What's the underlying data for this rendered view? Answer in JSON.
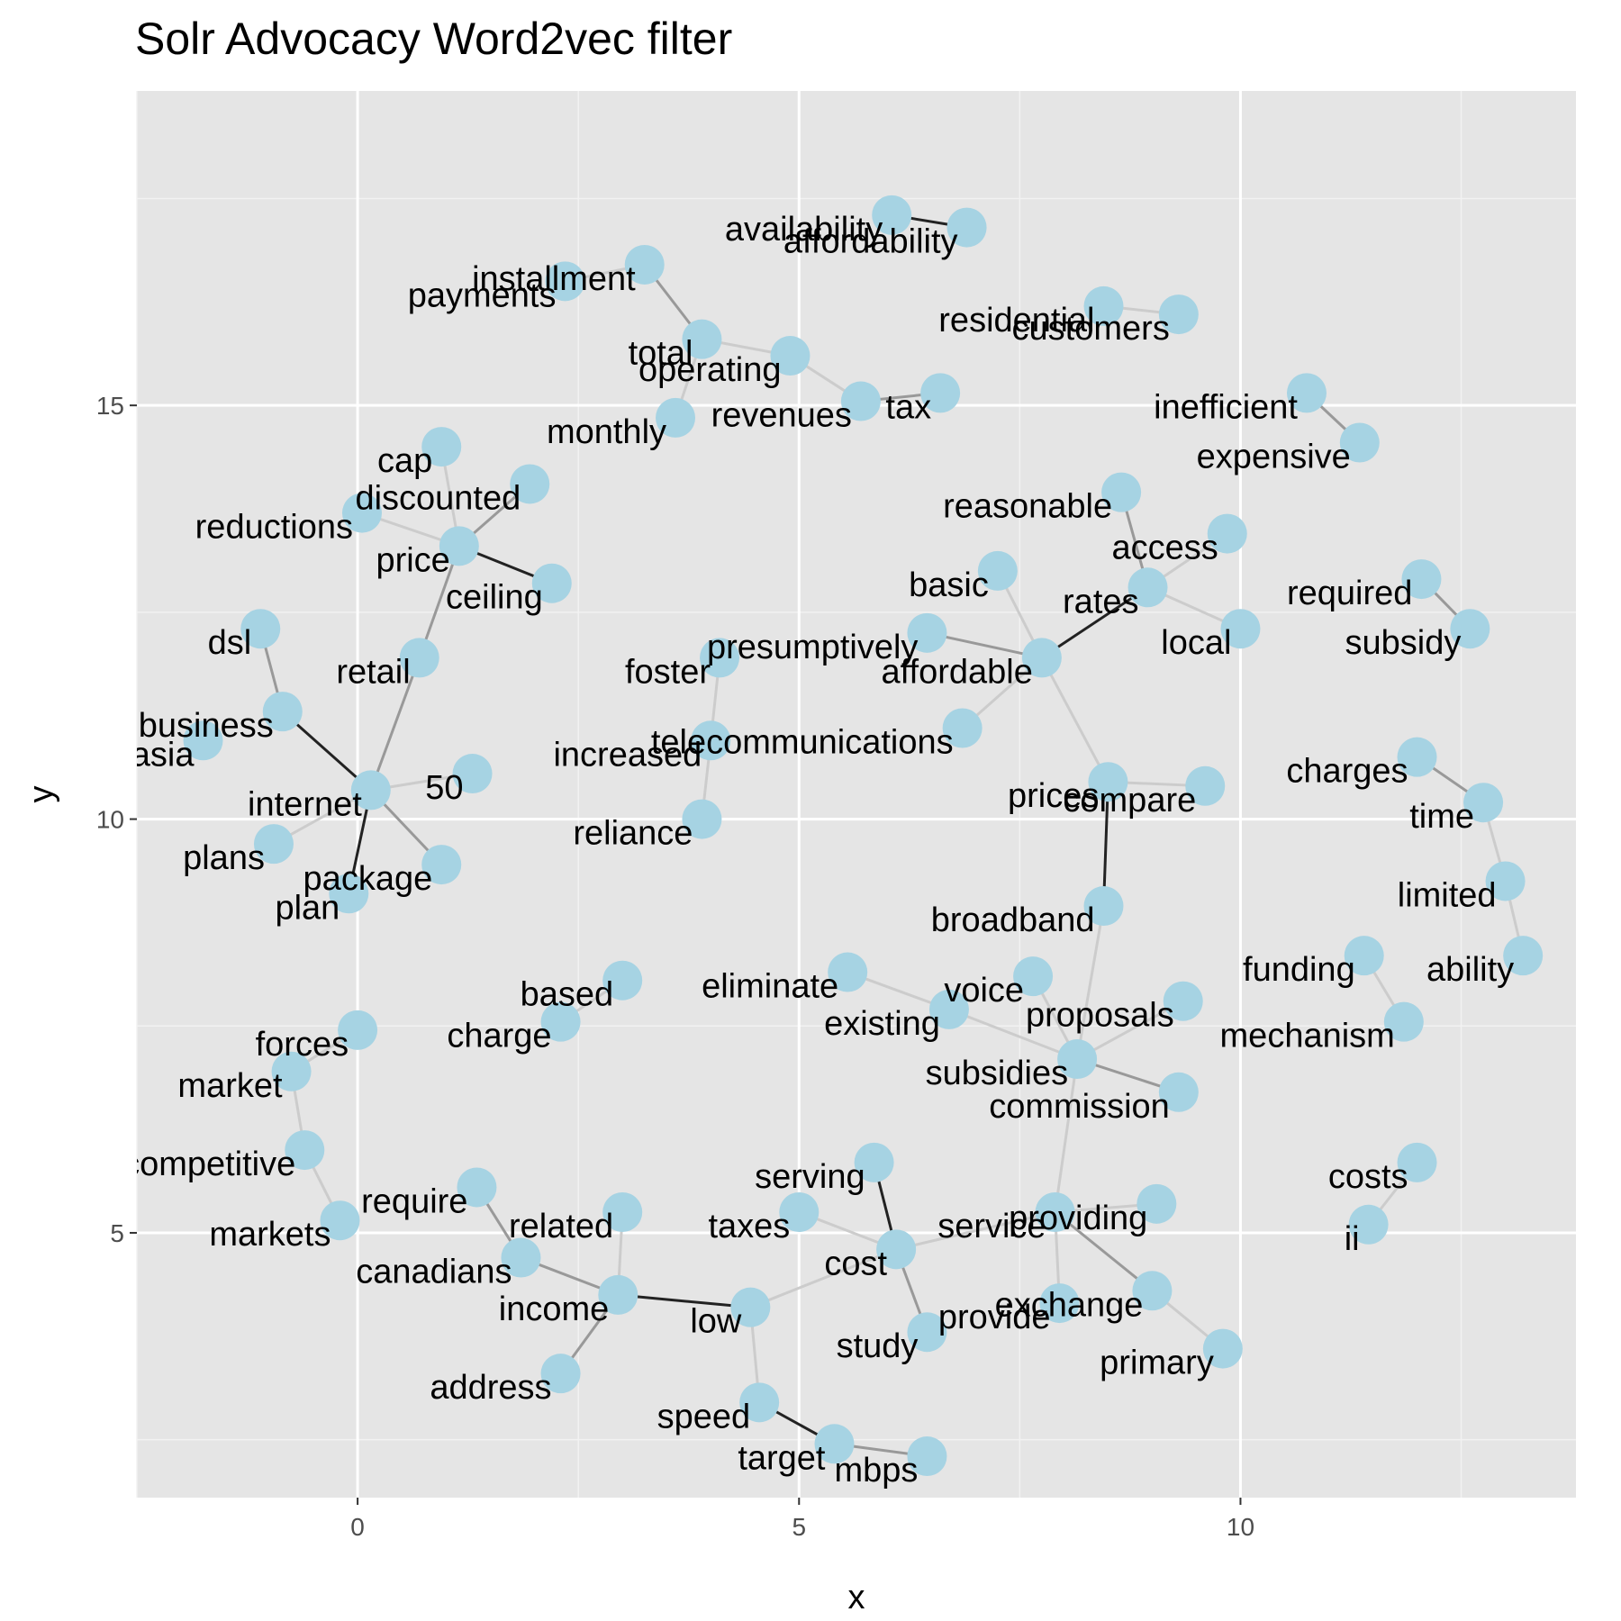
{
  "chart_data": {
    "type": "scatter",
    "title": "Solr Advocacy Word2vec filter",
    "xlabel": "x",
    "ylabel": "y",
    "xlim": [
      -2.5,
      13.8
    ],
    "ylim": [
      1.8,
      18.8
    ],
    "x_ticks": [
      0,
      5,
      10
    ],
    "y_ticks": [
      5,
      10,
      15
    ],
    "grid": true,
    "background": "#e5e5e5",
    "point_color": "#a6d3e3",
    "nodes": [
      {
        "word": "availability",
        "x": 6.05,
        "y": 17.3
      },
      {
        "word": "affordability",
        "x": 6.9,
        "y": 17.15
      },
      {
        "word": "installment",
        "x": 3.25,
        "y": 16.7
      },
      {
        "word": "payments",
        "x": 2.35,
        "y": 16.5
      },
      {
        "word": "residential",
        "x": 8.45,
        "y": 16.2
      },
      {
        "word": "customers",
        "x": 9.3,
        "y": 16.1
      },
      {
        "word": "total",
        "x": 3.9,
        "y": 15.8
      },
      {
        "word": "operating",
        "x": 4.9,
        "y": 15.6
      },
      {
        "word": "revenues",
        "x": 5.7,
        "y": 15.05
      },
      {
        "word": "tax",
        "x": 6.6,
        "y": 15.15
      },
      {
        "word": "monthly",
        "x": 3.6,
        "y": 14.85
      },
      {
        "word": "inefficient",
        "x": 10.75,
        "y": 15.15
      },
      {
        "word": "expensive",
        "x": 11.35,
        "y": 14.55
      },
      {
        "word": "cap",
        "x": 0.95,
        "y": 14.5
      },
      {
        "word": "discounted",
        "x": 1.95,
        "y": 14.05
      },
      {
        "word": "reductions",
        "x": 0.05,
        "y": 13.7
      },
      {
        "word": "price",
        "x": 1.15,
        "y": 13.3
      },
      {
        "word": "ceiling",
        "x": 2.2,
        "y": 12.85
      },
      {
        "word": "reasonable",
        "x": 8.65,
        "y": 13.95
      },
      {
        "word": "access",
        "x": 9.85,
        "y": 13.45
      },
      {
        "word": "basic",
        "x": 7.25,
        "y": 13.0
      },
      {
        "word": "rates",
        "x": 8.95,
        "y": 12.8
      },
      {
        "word": "required",
        "x": 12.05,
        "y": 12.9
      },
      {
        "word": "subsidy",
        "x": 12.6,
        "y": 12.3
      },
      {
        "word": "local",
        "x": 10.0,
        "y": 12.3
      },
      {
        "word": "presumptively",
        "x": 6.45,
        "y": 12.25
      },
      {
        "word": "affordable",
        "x": 7.75,
        "y": 11.95
      },
      {
        "word": "dsl",
        "x": -1.1,
        "y": 12.3
      },
      {
        "word": "retail",
        "x": 0.7,
        "y": 11.95
      },
      {
        "word": "foster",
        "x": 4.1,
        "y": 11.95
      },
      {
        "word": "business",
        "x": -0.85,
        "y": 11.3
      },
      {
        "word": "asia",
        "x": -1.75,
        "y": 10.95
      },
      {
        "word": "telecommunications",
        "x": 6.85,
        "y": 11.1
      },
      {
        "word": "increased",
        "x": 4.0,
        "y": 10.95
      },
      {
        "word": "charges",
        "x": 12.0,
        "y": 10.75
      },
      {
        "word": "50",
        "x": 1.3,
        "y": 10.55
      },
      {
        "word": "internet",
        "x": 0.15,
        "y": 10.35
      },
      {
        "word": "prices",
        "x": 8.5,
        "y": 10.45
      },
      {
        "word": "compare",
        "x": 9.6,
        "y": 10.4
      },
      {
        "word": "time",
        "x": 12.75,
        "y": 10.2
      },
      {
        "word": "reliance",
        "x": 3.9,
        "y": 10.0
      },
      {
        "word": "plans",
        "x": -0.95,
        "y": 9.7
      },
      {
        "word": "package",
        "x": 0.95,
        "y": 9.45
      },
      {
        "word": "plan",
        "x": -0.1,
        "y": 9.1
      },
      {
        "word": "limited",
        "x": 13.0,
        "y": 9.25
      },
      {
        "word": "broadband",
        "x": 8.45,
        "y": 8.95
      },
      {
        "word": "ability",
        "x": 13.2,
        "y": 8.35
      },
      {
        "word": "funding",
        "x": 11.4,
        "y": 8.35
      },
      {
        "word": "based",
        "x": 3.0,
        "y": 8.05
      },
      {
        "word": "eliminate",
        "x": 5.55,
        "y": 8.15
      },
      {
        "word": "voice",
        "x": 7.65,
        "y": 8.1
      },
      {
        "word": "proposals",
        "x": 9.35,
        "y": 7.8
      },
      {
        "word": "existing",
        "x": 6.7,
        "y": 7.7
      },
      {
        "word": "mechanism",
        "x": 11.85,
        "y": 7.55
      },
      {
        "word": "charge",
        "x": 2.3,
        "y": 7.55
      },
      {
        "word": "forces",
        "x": 0.0,
        "y": 7.45
      },
      {
        "word": "subsidies",
        "x": 8.15,
        "y": 7.1
      },
      {
        "word": "market",
        "x": -0.75,
        "y": 6.95
      },
      {
        "word": "commission",
        "x": 9.3,
        "y": 6.7
      },
      {
        "word": "competitive",
        "x": -0.6,
        "y": 6.0
      },
      {
        "word": "costs",
        "x": 12.0,
        "y": 5.85
      },
      {
        "word": "serving",
        "x": 5.85,
        "y": 5.85
      },
      {
        "word": "require",
        "x": 1.35,
        "y": 5.55
      },
      {
        "word": "related",
        "x": 3.0,
        "y": 5.25
      },
      {
        "word": "taxes",
        "x": 5.0,
        "y": 5.25
      },
      {
        "word": "providing",
        "x": 9.05,
        "y": 5.35
      },
      {
        "word": "service",
        "x": 7.9,
        "y": 5.25
      },
      {
        "word": "markets",
        "x": -0.2,
        "y": 5.15
      },
      {
        "word": "ii",
        "x": 11.45,
        "y": 5.1
      },
      {
        "word": "cost",
        "x": 6.1,
        "y": 4.8
      },
      {
        "word": "canadians",
        "x": 1.85,
        "y": 4.7
      },
      {
        "word": "exchange",
        "x": 9.0,
        "y": 4.3
      },
      {
        "word": "income",
        "x": 2.95,
        "y": 4.25
      },
      {
        "word": "low",
        "x": 4.45,
        "y": 4.1
      },
      {
        "word": "provide",
        "x": 7.95,
        "y": 4.15
      },
      {
        "word": "study",
        "x": 6.45,
        "y": 3.8
      },
      {
        "word": "primary",
        "x": 9.8,
        "y": 3.6
      },
      {
        "word": "address",
        "x": 2.3,
        "y": 3.3
      },
      {
        "word": "speed",
        "x": 4.55,
        "y": 2.95
      },
      {
        "word": "target",
        "x": 5.4,
        "y": 2.45
      },
      {
        "word": "mbps",
        "x": 6.45,
        "y": 2.3
      }
    ],
    "edges": [
      {
        "from": "availability",
        "to": "affordability",
        "strength": "strong"
      },
      {
        "from": "installment",
        "to": "payments",
        "strength": "weak"
      },
      {
        "from": "installment",
        "to": "total",
        "strength": "medium"
      },
      {
        "from": "total",
        "to": "operating",
        "strength": "weak"
      },
      {
        "from": "total",
        "to": "monthly",
        "strength": "weak"
      },
      {
        "from": "operating",
        "to": "revenues",
        "strength": "weak"
      },
      {
        "from": "revenues",
        "to": "tax",
        "strength": "medium"
      },
      {
        "from": "residential",
        "to": "customers",
        "strength": "weak"
      },
      {
        "from": "inefficient",
        "to": "expensive",
        "strength": "medium"
      },
      {
        "from": "cap",
        "to": "price",
        "strength": "weak"
      },
      {
        "from": "discounted",
        "to": "price",
        "strength": "medium"
      },
      {
        "from": "reductions",
        "to": "price",
        "strength": "weak"
      },
      {
        "from": "price",
        "to": "ceiling",
        "strength": "strong"
      },
      {
        "from": "price",
        "to": "retail",
        "strength": "medium"
      },
      {
        "from": "retail",
        "to": "internet",
        "strength": "medium"
      },
      {
        "from": "dsl",
        "to": "business",
        "strength": "medium"
      },
      {
        "from": "business",
        "to": "internet",
        "strength": "strong"
      },
      {
        "from": "internet",
        "to": "50",
        "strength": "weak"
      },
      {
        "from": "internet",
        "to": "plans",
        "strength": "weak"
      },
      {
        "from": "internet",
        "to": "package",
        "strength": "medium"
      },
      {
        "from": "internet",
        "to": "plan",
        "strength": "strong"
      },
      {
        "from": "reasonable",
        "to": "rates",
        "strength": "medium"
      },
      {
        "from": "access",
        "to": "rates",
        "strength": "weak"
      },
      {
        "from": "rates",
        "to": "local",
        "strength": "weak"
      },
      {
        "from": "rates",
        "to": "affordable",
        "strength": "strong"
      },
      {
        "from": "basic",
        "to": "affordable",
        "strength": "weak"
      },
      {
        "from": "presumptively",
        "to": "affordable",
        "strength": "medium"
      },
      {
        "from": "telecommunications",
        "to": "affordable",
        "strength": "weak"
      },
      {
        "from": "affordable",
        "to": "prices",
        "strength": "weak"
      },
      {
        "from": "prices",
        "to": "compare",
        "strength": "weak"
      },
      {
        "from": "prices",
        "to": "broadband",
        "strength": "strong"
      },
      {
        "from": "required",
        "to": "subsidy",
        "strength": "medium"
      },
      {
        "from": "foster",
        "to": "increased",
        "strength": "weak"
      },
      {
        "from": "increased",
        "to": "reliance",
        "strength": "weak"
      },
      {
        "from": "charges",
        "to": "time",
        "strength": "medium"
      },
      {
        "from": "time",
        "to": "limited",
        "strength": "weak"
      },
      {
        "from": "limited",
        "to": "ability",
        "strength": "weak"
      },
      {
        "from": "funding",
        "to": "mechanism",
        "strength": "weak"
      },
      {
        "from": "broadband",
        "to": "subsidies",
        "strength": "weak"
      },
      {
        "from": "eliminate",
        "to": "existing",
        "strength": "weak"
      },
      {
        "from": "existing",
        "to": "subsidies",
        "strength": "weak"
      },
      {
        "from": "voice",
        "to": "subsidies",
        "strength": "weak"
      },
      {
        "from": "proposals",
        "to": "subsidies",
        "strength": "weak"
      },
      {
        "from": "subsidies",
        "to": "commission",
        "strength": "medium"
      },
      {
        "from": "subsidies",
        "to": "service",
        "strength": "weak"
      },
      {
        "from": "based",
        "to": "charge",
        "strength": "weak"
      },
      {
        "from": "forces",
        "to": "market",
        "strength": "weak"
      },
      {
        "from": "market",
        "to": "competitive",
        "strength": "weak"
      },
      {
        "from": "competitive",
        "to": "markets",
        "strength": "weak"
      },
      {
        "from": "costs",
        "to": "ii",
        "strength": "weak"
      },
      {
        "from": "serving",
        "to": "cost",
        "strength": "strong"
      },
      {
        "from": "taxes",
        "to": "cost",
        "strength": "weak"
      },
      {
        "from": "cost",
        "to": "service",
        "strength": "weak"
      },
      {
        "from": "cost",
        "to": "study",
        "strength": "medium"
      },
      {
        "from": "cost",
        "to": "low",
        "strength": "weak"
      },
      {
        "from": "service",
        "to": "providing",
        "strength": "weak"
      },
      {
        "from": "service",
        "to": "provide",
        "strength": "weak"
      },
      {
        "from": "service",
        "to": "exchange",
        "strength": "medium"
      },
      {
        "from": "exchange",
        "to": "primary",
        "strength": "weak"
      },
      {
        "from": "require",
        "to": "canadians",
        "strength": "medium"
      },
      {
        "from": "canadians",
        "to": "income",
        "strength": "medium"
      },
      {
        "from": "related",
        "to": "income",
        "strength": "weak"
      },
      {
        "from": "income",
        "to": "address",
        "strength": "medium"
      },
      {
        "from": "income",
        "to": "low",
        "strength": "strong"
      },
      {
        "from": "low",
        "to": "speed",
        "strength": "weak"
      },
      {
        "from": "speed",
        "to": "target",
        "strength": "strong"
      },
      {
        "from": "target",
        "to": "mbps",
        "strength": "medium"
      }
    ]
  }
}
